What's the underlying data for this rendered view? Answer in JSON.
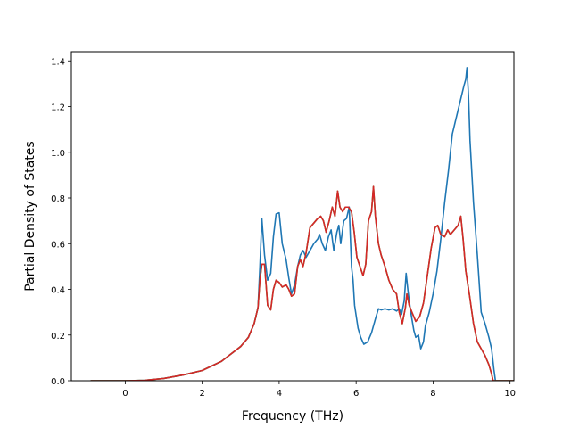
{
  "chart_data": {
    "type": "line",
    "title": "",
    "xlabel": "Frequency (THz)",
    "ylabel": "Partial Density of States",
    "xlim": [
      -1.4,
      10.1
    ],
    "ylim": [
      0.0,
      1.44
    ],
    "xticks": [
      0,
      2,
      4,
      6,
      8,
      10
    ],
    "yticks": [
      0.0,
      0.2,
      0.4,
      0.6,
      0.8,
      1.0,
      1.2,
      1.4
    ],
    "grid": false,
    "series": [
      {
        "color": "#1f77b4",
        "points": [
          [
            -0.9,
            0.0
          ],
          [
            0.0,
            0.0
          ],
          [
            0.5,
            0.002
          ],
          [
            1.0,
            0.01
          ],
          [
            1.5,
            0.025
          ],
          [
            2.0,
            0.045
          ],
          [
            2.5,
            0.085
          ],
          [
            3.0,
            0.15
          ],
          [
            3.2,
            0.19
          ],
          [
            3.35,
            0.25
          ],
          [
            3.45,
            0.32
          ],
          [
            3.5,
            0.5
          ],
          [
            3.55,
            0.71
          ],
          [
            3.62,
            0.55
          ],
          [
            3.7,
            0.44
          ],
          [
            3.78,
            0.47
          ],
          [
            3.85,
            0.63
          ],
          [
            3.92,
            0.73
          ],
          [
            4.0,
            0.735
          ],
          [
            4.08,
            0.6
          ],
          [
            4.18,
            0.53
          ],
          [
            4.25,
            0.45
          ],
          [
            4.32,
            0.38
          ],
          [
            4.4,
            0.42
          ],
          [
            4.48,
            0.5
          ],
          [
            4.55,
            0.55
          ],
          [
            4.62,
            0.57
          ],
          [
            4.7,
            0.54
          ],
          [
            4.8,
            0.57
          ],
          [
            4.9,
            0.6
          ],
          [
            5.0,
            0.62
          ],
          [
            5.05,
            0.64
          ],
          [
            5.12,
            0.6
          ],
          [
            5.2,
            0.57
          ],
          [
            5.28,
            0.63
          ],
          [
            5.35,
            0.66
          ],
          [
            5.42,
            0.57
          ],
          [
            5.5,
            0.65
          ],
          [
            5.55,
            0.68
          ],
          [
            5.6,
            0.6
          ],
          [
            5.68,
            0.7
          ],
          [
            5.75,
            0.71
          ],
          [
            5.82,
            0.76
          ],
          [
            5.88,
            0.5
          ],
          [
            5.92,
            0.44
          ],
          [
            5.96,
            0.33
          ],
          [
            6.05,
            0.23
          ],
          [
            6.12,
            0.19
          ],
          [
            6.2,
            0.16
          ],
          [
            6.3,
            0.17
          ],
          [
            6.4,
            0.21
          ],
          [
            6.5,
            0.27
          ],
          [
            6.58,
            0.315
          ],
          [
            6.65,
            0.31
          ],
          [
            6.75,
            0.315
          ],
          [
            6.85,
            0.31
          ],
          [
            6.95,
            0.315
          ],
          [
            7.05,
            0.305
          ],
          [
            7.12,
            0.315
          ],
          [
            7.18,
            0.29
          ],
          [
            7.25,
            0.35
          ],
          [
            7.3,
            0.47
          ],
          [
            7.35,
            0.39
          ],
          [
            7.42,
            0.3
          ],
          [
            7.5,
            0.22
          ],
          [
            7.55,
            0.19
          ],
          [
            7.62,
            0.2
          ],
          [
            7.68,
            0.14
          ],
          [
            7.75,
            0.17
          ],
          [
            7.8,
            0.24
          ],
          [
            7.9,
            0.3
          ],
          [
            8.0,
            0.38
          ],
          [
            8.1,
            0.48
          ],
          [
            8.2,
            0.62
          ],
          [
            8.3,
            0.78
          ],
          [
            8.4,
            0.92
          ],
          [
            8.5,
            1.08
          ],
          [
            8.6,
            1.15
          ],
          [
            8.7,
            1.22
          ],
          [
            8.8,
            1.29
          ],
          [
            8.85,
            1.32
          ],
          [
            8.88,
            1.37
          ],
          [
            8.92,
            1.25
          ],
          [
            8.96,
            1.05
          ],
          [
            9.05,
            0.78
          ],
          [
            9.15,
            0.55
          ],
          [
            9.25,
            0.3
          ],
          [
            9.35,
            0.25
          ],
          [
            9.45,
            0.19
          ],
          [
            9.52,
            0.14
          ],
          [
            9.58,
            0.05
          ],
          [
            9.62,
            0.0
          ],
          [
            9.7,
            0.0
          ],
          [
            10.3,
            0.0
          ]
        ]
      },
      {
        "color": "#2ca02c",
        "points": [
          [
            -0.9,
            0.0
          ],
          [
            0.0,
            0.0
          ],
          [
            0.5,
            0.002
          ],
          [
            1.0,
            0.01
          ],
          [
            1.5,
            0.025
          ],
          [
            2.0,
            0.045
          ],
          [
            2.5,
            0.085
          ],
          [
            3.0,
            0.15
          ],
          [
            3.2,
            0.19
          ],
          [
            3.35,
            0.25
          ],
          [
            3.45,
            0.32
          ],
          [
            3.5,
            0.44
          ],
          [
            3.55,
            0.51
          ],
          [
            3.62,
            0.51
          ],
          [
            3.7,
            0.33
          ],
          [
            3.78,
            0.31
          ],
          [
            3.85,
            0.4
          ],
          [
            3.92,
            0.44
          ],
          [
            4.0,
            0.43
          ],
          [
            4.08,
            0.41
          ],
          [
            4.18,
            0.42
          ],
          [
            4.25,
            0.4
          ],
          [
            4.32,
            0.37
          ],
          [
            4.4,
            0.38
          ],
          [
            4.48,
            0.5
          ],
          [
            4.55,
            0.53
          ],
          [
            4.62,
            0.5
          ],
          [
            4.7,
            0.56
          ],
          [
            4.8,
            0.67
          ],
          [
            4.9,
            0.69
          ],
          [
            5.0,
            0.71
          ],
          [
            5.08,
            0.72
          ],
          [
            5.15,
            0.7
          ],
          [
            5.22,
            0.65
          ],
          [
            5.3,
            0.7
          ],
          [
            5.38,
            0.76
          ],
          [
            5.45,
            0.72
          ],
          [
            5.52,
            0.83
          ],
          [
            5.58,
            0.76
          ],
          [
            5.65,
            0.74
          ],
          [
            5.72,
            0.76
          ],
          [
            5.8,
            0.76
          ],
          [
            5.88,
            0.74
          ],
          [
            5.95,
            0.65
          ],
          [
            6.02,
            0.54
          ],
          [
            6.1,
            0.5
          ],
          [
            6.18,
            0.46
          ],
          [
            6.25,
            0.51
          ],
          [
            6.32,
            0.7
          ],
          [
            6.4,
            0.74
          ],
          [
            6.45,
            0.85
          ],
          [
            6.5,
            0.72
          ],
          [
            6.58,
            0.6
          ],
          [
            6.65,
            0.55
          ],
          [
            6.75,
            0.5
          ],
          [
            6.85,
            0.44
          ],
          [
            6.95,
            0.4
          ],
          [
            7.05,
            0.38
          ],
          [
            7.12,
            0.3
          ],
          [
            7.2,
            0.25
          ],
          [
            7.28,
            0.32
          ],
          [
            7.32,
            0.38
          ],
          [
            7.38,
            0.33
          ],
          [
            7.45,
            0.3
          ],
          [
            7.55,
            0.26
          ],
          [
            7.65,
            0.28
          ],
          [
            7.75,
            0.34
          ],
          [
            7.85,
            0.46
          ],
          [
            7.95,
            0.58
          ],
          [
            8.05,
            0.67
          ],
          [
            8.12,
            0.68
          ],
          [
            8.2,
            0.64
          ],
          [
            8.3,
            0.63
          ],
          [
            8.38,
            0.66
          ],
          [
            8.45,
            0.64
          ],
          [
            8.55,
            0.66
          ],
          [
            8.65,
            0.68
          ],
          [
            8.72,
            0.72
          ],
          [
            8.78,
            0.62
          ],
          [
            8.85,
            0.48
          ],
          [
            8.95,
            0.37
          ],
          [
            9.05,
            0.25
          ],
          [
            9.15,
            0.17
          ],
          [
            9.25,
            0.14
          ],
          [
            9.35,
            0.11
          ],
          [
            9.45,
            0.07
          ],
          [
            9.52,
            0.03
          ],
          [
            9.56,
            0.0
          ],
          [
            9.7,
            0.0
          ],
          [
            10.3,
            0.0
          ]
        ]
      },
      {
        "color": "#d62728",
        "points": [
          [
            -0.9,
            0.0
          ],
          [
            0.0,
            0.0
          ],
          [
            0.5,
            0.002
          ],
          [
            1.0,
            0.01
          ],
          [
            1.5,
            0.025
          ],
          [
            2.0,
            0.045
          ],
          [
            2.5,
            0.085
          ],
          [
            3.0,
            0.15
          ],
          [
            3.2,
            0.19
          ],
          [
            3.35,
            0.25
          ],
          [
            3.45,
            0.32
          ],
          [
            3.5,
            0.44
          ],
          [
            3.55,
            0.51
          ],
          [
            3.62,
            0.51
          ],
          [
            3.7,
            0.33
          ],
          [
            3.78,
            0.31
          ],
          [
            3.85,
            0.4
          ],
          [
            3.92,
            0.44
          ],
          [
            4.0,
            0.43
          ],
          [
            4.08,
            0.41
          ],
          [
            4.18,
            0.42
          ],
          [
            4.25,
            0.4
          ],
          [
            4.32,
            0.37
          ],
          [
            4.4,
            0.38
          ],
          [
            4.48,
            0.5
          ],
          [
            4.55,
            0.53
          ],
          [
            4.62,
            0.5
          ],
          [
            4.7,
            0.56
          ],
          [
            4.8,
            0.67
          ],
          [
            4.9,
            0.69
          ],
          [
            5.0,
            0.71
          ],
          [
            5.08,
            0.72
          ],
          [
            5.15,
            0.7
          ],
          [
            5.22,
            0.65
          ],
          [
            5.3,
            0.7
          ],
          [
            5.38,
            0.76
          ],
          [
            5.45,
            0.72
          ],
          [
            5.52,
            0.83
          ],
          [
            5.58,
            0.76
          ],
          [
            5.65,
            0.74
          ],
          [
            5.72,
            0.76
          ],
          [
            5.8,
            0.76
          ],
          [
            5.88,
            0.74
          ],
          [
            5.95,
            0.65
          ],
          [
            6.02,
            0.54
          ],
          [
            6.1,
            0.5
          ],
          [
            6.18,
            0.46
          ],
          [
            6.25,
            0.51
          ],
          [
            6.32,
            0.7
          ],
          [
            6.4,
            0.74
          ],
          [
            6.45,
            0.85
          ],
          [
            6.5,
            0.72
          ],
          [
            6.58,
            0.6
          ],
          [
            6.65,
            0.55
          ],
          [
            6.75,
            0.5
          ],
          [
            6.85,
            0.44
          ],
          [
            6.95,
            0.4
          ],
          [
            7.05,
            0.38
          ],
          [
            7.12,
            0.3
          ],
          [
            7.2,
            0.25
          ],
          [
            7.28,
            0.32
          ],
          [
            7.32,
            0.38
          ],
          [
            7.38,
            0.33
          ],
          [
            7.45,
            0.3
          ],
          [
            7.55,
            0.26
          ],
          [
            7.65,
            0.28
          ],
          [
            7.75,
            0.34
          ],
          [
            7.85,
            0.46
          ],
          [
            7.95,
            0.58
          ],
          [
            8.05,
            0.67
          ],
          [
            8.12,
            0.68
          ],
          [
            8.2,
            0.64
          ],
          [
            8.3,
            0.63
          ],
          [
            8.38,
            0.66
          ],
          [
            8.45,
            0.64
          ],
          [
            8.55,
            0.66
          ],
          [
            8.65,
            0.68
          ],
          [
            8.72,
            0.72
          ],
          [
            8.78,
            0.62
          ],
          [
            8.85,
            0.48
          ],
          [
            8.95,
            0.37
          ],
          [
            9.05,
            0.25
          ],
          [
            9.15,
            0.17
          ],
          [
            9.25,
            0.14
          ],
          [
            9.35,
            0.11
          ],
          [
            9.45,
            0.07
          ],
          [
            9.52,
            0.03
          ],
          [
            9.56,
            0.0
          ],
          [
            9.7,
            0.0
          ],
          [
            10.3,
            0.0
          ]
        ]
      }
    ]
  }
}
